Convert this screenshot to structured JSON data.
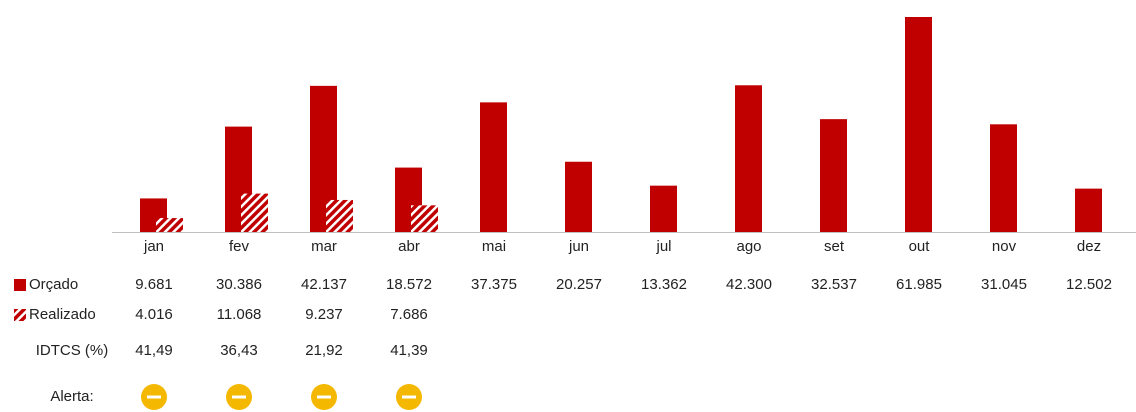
{
  "chart_data": {
    "type": "bar",
    "categories": [
      "jan",
      "fev",
      "mar",
      "abr",
      "mai",
      "jun",
      "jul",
      "ago",
      "set",
      "out",
      "nov",
      "dez"
    ],
    "series": [
      {
        "name": "Orçado",
        "color": "#c00000",
        "hatch": false,
        "values": [
          9681,
          30386,
          42137,
          18572,
          37375,
          20257,
          13362,
          42300,
          32537,
          61985,
          31045,
          12502
        ],
        "value_labels": [
          "9.681",
          "30.386",
          "42.137",
          "18.572",
          "37.375",
          "20.257",
          "13.362",
          "42.300",
          "32.537",
          "61.985",
          "31.045",
          "12.502"
        ]
      },
      {
        "name": "Realizado",
        "color": "#c00000",
        "hatch": true,
        "values": [
          4016,
          11068,
          9237,
          7686,
          null,
          null,
          null,
          null,
          null,
          null,
          null,
          null
        ],
        "value_labels": [
          "4.016",
          "11.068",
          "9.237",
          "7.686",
          null,
          null,
          null,
          null,
          null,
          null,
          null,
          null
        ]
      }
    ],
    "rows": [
      {
        "name": "IDTCS (%)",
        "values": [
          41.49,
          36.43,
          21.92,
          41.39,
          null,
          null,
          null,
          null,
          null,
          null,
          null,
          null
        ],
        "value_labels": [
          "41,49",
          "36,43",
          "21,92",
          "41,39",
          null,
          null,
          null,
          null,
          null,
          null,
          null,
          null
        ]
      }
    ],
    "alert_label": "Alerta:"
  }
}
